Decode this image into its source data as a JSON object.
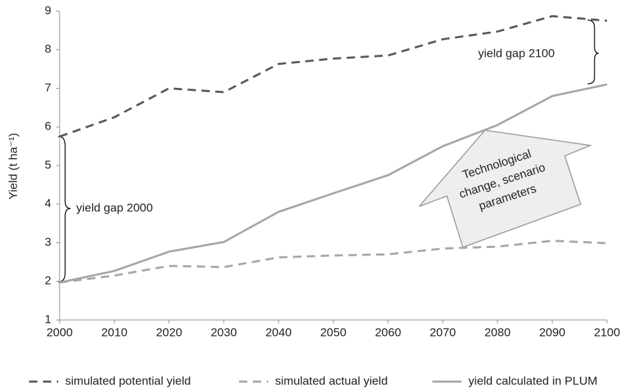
{
  "chart_data": {
    "type": "line",
    "y_label": "Yield (t ha⁻¹)",
    "x": [
      2000,
      2010,
      2020,
      2030,
      2040,
      2050,
      2060,
      2070,
      2080,
      2090,
      2100
    ],
    "series": [
      {
        "name": "simulated potential yield",
        "color": "#595959",
        "dash": "dashed",
        "values": [
          5.75,
          6.25,
          7.0,
          6.9,
          7.63,
          7.77,
          7.85,
          8.27,
          8.47,
          8.87,
          8.75
        ]
      },
      {
        "name": "simulated actual yield",
        "color": "#a6a6a6",
        "dash": "dashed",
        "values": [
          1.97,
          2.15,
          2.4,
          2.37,
          2.62,
          2.67,
          2.7,
          2.85,
          2.9,
          3.05,
          2.99
        ]
      },
      {
        "name": "yield calculated in PLUM",
        "color": "#a6a6a6",
        "dash": "solid",
        "values": [
          1.97,
          2.27,
          2.77,
          3.02,
          3.8,
          4.28,
          4.75,
          5.5,
          6.05,
          6.8,
          7.1
        ]
      }
    ],
    "xlim": [
      2000,
      2100
    ],
    "xticks": [
      2000,
      2010,
      2020,
      2030,
      2040,
      2050,
      2060,
      2070,
      2080,
      2090,
      2100
    ],
    "ylim": [
      1,
      9
    ],
    "yticks": [
      1,
      2,
      3,
      4,
      5,
      6,
      7,
      8,
      9
    ],
    "grid": false,
    "legend": "bottom",
    "annotations": {
      "gap_2000": "yield gap 2000",
      "gap_2100": "yield gap 2100",
      "arrow_text": [
        "Technological",
        "change, scenario",
        "parameters"
      ]
    }
  }
}
